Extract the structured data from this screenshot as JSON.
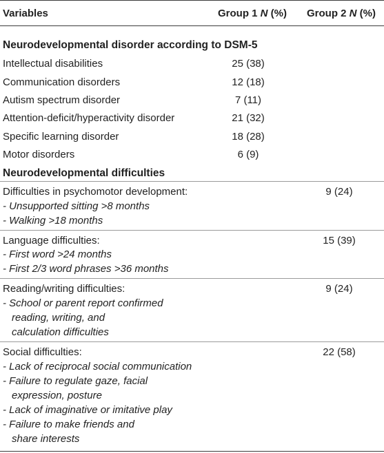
{
  "headers": {
    "variables": "Variables",
    "group1_prefix": "Group 1 ",
    "group1_n": "N",
    "group1_suffix": " (%)",
    "group2_prefix": "Group 2 ",
    "group2_n": "N",
    "group2_suffix": " (%)"
  },
  "section1": {
    "title": "Neurodevelopmental disorder according to DSM-5",
    "rows": [
      {
        "label": "Intellectual disabilities",
        "g1": "25 (38)"
      },
      {
        "label": "Communication disorders",
        "g1": "12 (18)"
      },
      {
        "label": "Autism spectrum disorder",
        "g1": "7 (11)"
      },
      {
        "label": "Attention-deficit/hyperactivity disorder",
        "g1": "21 (32)"
      },
      {
        "label": "Specific learning disorder",
        "g1": "18 (28)"
      },
      {
        "label": "Motor disorders",
        "g1": "6 (9)"
      }
    ]
  },
  "section2": {
    "title": "Neurodevelopmental difficulties",
    "groups": [
      {
        "label": "Difficulties in psychomotor development:",
        "g2": "9 (24)",
        "items": [
          "- Unsupported sitting >8 months",
          "- Walking >18 months"
        ]
      },
      {
        "label": "Language difficulties:",
        "g2": "15 (39)",
        "items": [
          "- First word >24 months",
          "- First 2/3 word phrases >36 months"
        ]
      },
      {
        "label": "Reading/writing difficulties:",
        "g2": "9 (24)",
        "items": [
          "- School or parent report confirmed",
          "reading, writing, and",
          "calculation difficulties"
        ]
      },
      {
        "label": "Social difficulties:",
        "g2": "22 (58)",
        "items": [
          "- Lack of reciprocal social communication",
          "- Failure to regulate gaze, facial",
          "expression, posture",
          "- Lack of imaginative or imitative play",
          "- Failure to make friends and",
          "share interests"
        ]
      }
    ]
  }
}
